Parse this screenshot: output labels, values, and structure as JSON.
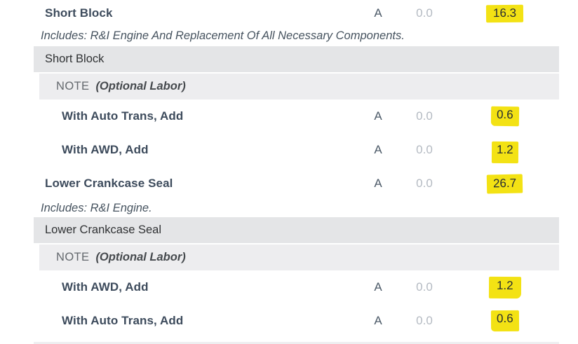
{
  "colors": {
    "highlight_yellow": "#f3e214",
    "section_band": "#e4e5e7",
    "note_band": "#ededef",
    "operation_text": "#3d4b5c",
    "muted_value": "#b4bac2"
  },
  "table": {
    "rows": [
      {
        "type": "operation",
        "label": "Short Block",
        "code": "A",
        "skill": "0.0",
        "time": "16.3",
        "highlighted": true
      },
      {
        "type": "includes",
        "label": "Includes: R&I Engine And Replacement Of All Necessary Components."
      },
      {
        "type": "section",
        "label": "Short Block"
      },
      {
        "type": "note",
        "prefix": "NOTE",
        "label": "(Optional Labor)"
      },
      {
        "type": "operation",
        "label": "With Auto Trans, Add",
        "code": "A",
        "skill": "0.0",
        "time": "0.6",
        "highlighted": true
      },
      {
        "type": "operation",
        "label": "With AWD, Add",
        "code": "A",
        "skill": "0.0",
        "time": "1.2",
        "highlighted": true
      },
      {
        "type": "operation",
        "label": "Lower Crankcase Seal",
        "code": "A",
        "skill": "0.0",
        "time": "26.7",
        "highlighted": true
      },
      {
        "type": "includes",
        "label": "Includes: R&I Engine."
      },
      {
        "type": "section",
        "label": "Lower Crankcase Seal"
      },
      {
        "type": "note",
        "prefix": "NOTE",
        "label": "(Optional Labor)"
      },
      {
        "type": "operation",
        "label": "With AWD, Add",
        "code": "A",
        "skill": "0.0",
        "time": "1.2",
        "highlighted": true
      },
      {
        "type": "operation",
        "label": "With Auto Trans, Add",
        "code": "A",
        "skill": "0.0",
        "time": "0.6",
        "highlighted": true
      }
    ]
  }
}
